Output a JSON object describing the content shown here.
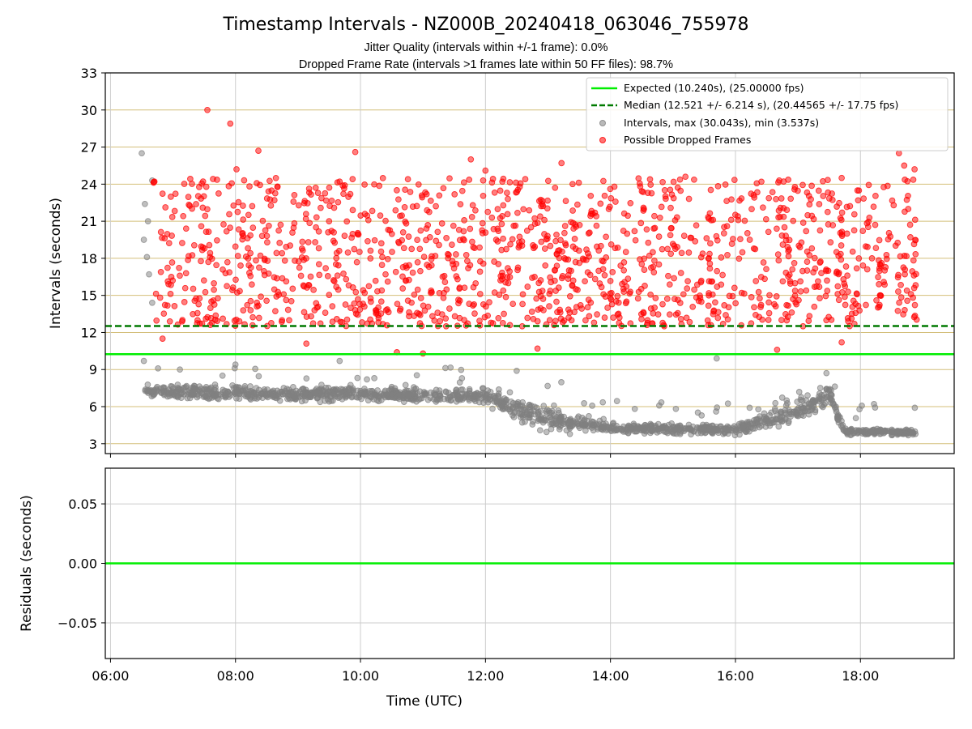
{
  "figure": {
    "title": "Timestamp Intervals - NZ000B_20240418_063046_755978",
    "subtitle_line1": "Jitter Quality (intervals within +/-1 frame): 0.0%",
    "subtitle_line2": "Dropped Frame Rate (intervals >1 frames late within 50 FF files): 98.7%"
  },
  "colors": {
    "expected": "#00ee00",
    "median": "#007a00",
    "intervals": "#808080",
    "dropped": "#ff0000",
    "top_grid": "#d4bf7a",
    "bottom_grid": "#cccccc"
  },
  "chart_data": [
    {
      "type": "scatter",
      "ylabel": "Intervals (seconds)",
      "xlim": [
        "05:55",
        "19:30"
      ],
      "ylim": [
        2.2,
        33
      ],
      "yticks": [
        3,
        6,
        9,
        12,
        15,
        18,
        21,
        24,
        27,
        30,
        33
      ],
      "grid": "horizontal",
      "legend_position": "top-right",
      "reference_lines": [
        {
          "name": "Expected (10.240s), (25.00000 fps)",
          "y": 10.24,
          "style": "solid",
          "color": "#00ee00"
        },
        {
          "name": "Median (12.521 +/- 6.214 s), (20.44565 +/- 17.75 fps)",
          "y": 12.521,
          "style": "dashed",
          "color": "#007a00"
        }
      ],
      "series": [
        {
          "name": "Intervals, max (30.043s), min (3.537s)",
          "color": "#808080",
          "trend": [
            {
              "x": "06:33",
              "y_center": 7.3,
              "spread": 0.8
            },
            {
              "x": "08:00",
              "y_center": 7.1,
              "spread": 0.8
            },
            {
              "x": "10:00",
              "y_center": 7.0,
              "spread": 0.8
            },
            {
              "x": "12:00",
              "y_center": 6.8,
              "spread": 0.9
            },
            {
              "x": "13:00",
              "y_center": 5.0,
              "spread": 1.4
            },
            {
              "x": "14:00",
              "y_center": 4.3,
              "spread": 0.6
            },
            {
              "x": "16:00",
              "y_center": 4.1,
              "spread": 0.5
            },
            {
              "x": "16:30",
              "y_center": 4.8,
              "spread": 1.1
            },
            {
              "x": "17:30",
              "y_center": 6.8,
              "spread": 1.3
            },
            {
              "x": "17:45",
              "y_center": 4.0,
              "spread": 0.35
            },
            {
              "x": "18:53",
              "y_center": 3.9,
              "spread": 0.3
            }
          ],
          "notable_points": [
            {
              "x": "06:30",
              "y": 26.5
            },
            {
              "x": "06:40",
              "y": 24.3
            },
            {
              "x": "06:33",
              "y": 22.4
            },
            {
              "x": "06:36",
              "y": 21.0
            },
            {
              "x": "06:32",
              "y": 19.5
            },
            {
              "x": "06:35",
              "y": 18.1
            },
            {
              "x": "06:37",
              "y": 16.7
            },
            {
              "x": "06:40",
              "y": 14.4
            },
            {
              "x": "06:32",
              "y": 9.7
            },
            {
              "x": "15:42",
              "y": 9.9
            },
            {
              "x": "08:00",
              "y": 9.4
            },
            {
              "x": "09:40",
              "y": 9.7
            },
            {
              "x": "12:30",
              "y": 8.9
            }
          ]
        },
        {
          "name": "Possible Dropped Frames",
          "color": "#ff0000",
          "x_range": [
            "06:40",
            "18:55"
          ],
          "y_range": [
            12.5,
            24.5
          ],
          "notable_points": [
            {
              "x": "07:33",
              "y": 30.0
            },
            {
              "x": "07:55",
              "y": 28.9
            },
            {
              "x": "08:22",
              "y": 26.7
            },
            {
              "x": "09:55",
              "y": 26.6
            },
            {
              "x": "18:37",
              "y": 26.5
            },
            {
              "x": "11:46",
              "y": 26.0
            },
            {
              "x": "13:13",
              "y": 25.7
            },
            {
              "x": "18:42",
              "y": 25.5
            },
            {
              "x": "18:52",
              "y": 25.2
            },
            {
              "x": "08:01",
              "y": 25.2
            },
            {
              "x": "12:00",
              "y": 25.1
            },
            {
              "x": "15:12",
              "y": 24.6
            },
            {
              "x": "17:42",
              "y": 24.5
            },
            {
              "x": "16:42",
              "y": 24.3
            },
            {
              "x": "06:50",
              "y": 11.5
            },
            {
              "x": "09:08",
              "y": 11.1
            },
            {
              "x": "10:35",
              "y": 10.4
            },
            {
              "x": "11:00",
              "y": 10.3
            },
            {
              "x": "12:50",
              "y": 10.7
            },
            {
              "x": "16:40",
              "y": 10.6
            },
            {
              "x": "17:42",
              "y": 11.2
            }
          ]
        }
      ]
    },
    {
      "type": "line",
      "xlabel": "Time (UTC)",
      "ylabel": "Residuals (seconds)",
      "xlim": [
        "05:55",
        "19:30"
      ],
      "ylim": [
        -0.08,
        0.08
      ],
      "yticks": [
        -0.05,
        0.0,
        0.05
      ],
      "ytick_labels": [
        "−0.05",
        "0.00",
        "0.05"
      ],
      "xticks": [
        "06:00",
        "08:00",
        "10:00",
        "12:00",
        "14:00",
        "16:00",
        "18:00"
      ],
      "grid": "both",
      "series": [
        {
          "x": [
            "05:55",
            "19:30"
          ],
          "y": [
            0.0,
            0.0
          ],
          "color": "#00ee00"
        }
      ]
    }
  ]
}
